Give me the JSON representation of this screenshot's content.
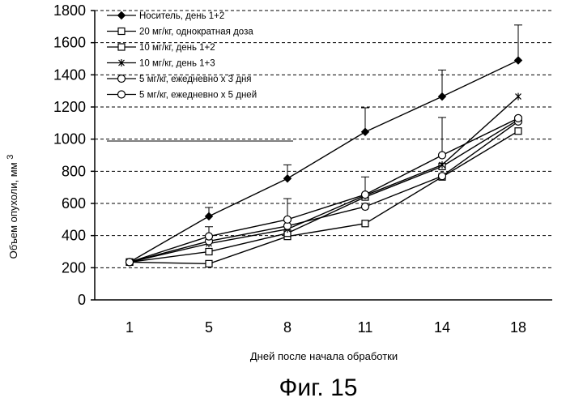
{
  "chart_data": {
    "type": "line",
    "title": "",
    "xlabel": "Дней после начала обработки",
    "ylabel": "Объем опухоли, мм",
    "ylabel_sup": "3",
    "caption": "Фиг. 15",
    "categories": [
      "1",
      "5",
      "8",
      "11",
      "14",
      "18"
    ],
    "ylim": [
      0,
      1800
    ],
    "yticks": [
      0,
      200,
      400,
      600,
      800,
      1000,
      1200,
      1400,
      1600,
      1800
    ],
    "grid": "horizontal-dashed",
    "legend_position": "top-left",
    "series": [
      {
        "name": "Носитель, день 1+2",
        "marker": "diamond-filled",
        "values": [
          235,
          520,
          755,
          1045,
          1265,
          1490
        ],
        "err": [
          0,
          55,
          85,
          150,
          165,
          220
        ]
      },
      {
        "name": "20 мг/кг, однократная доза",
        "marker": "square-open",
        "values": [
          235,
          225,
          395,
          475,
          765,
          1050
        ],
        "err": [
          0,
          0,
          0,
          0,
          0,
          0
        ]
      },
      {
        "name": "10 мг/кг, день 1+2",
        "marker": "square-open",
        "values": [
          235,
          300,
          415,
          640,
          830,
          1120
        ],
        "err": [
          0,
          0,
          0,
          0,
          0,
          0
        ]
      },
      {
        "name": "10 мг/кг, день 1+3",
        "marker": "asterisk",
        "values": [
          235,
          350,
          440,
          650,
          840,
          1265
        ],
        "err": [
          0,
          0,
          0,
          0,
          0,
          0
        ]
      },
      {
        "name": "5 мг/кг, ежедневно x 3 дня",
        "marker": "circle-open",
        "values": [
          235,
          365,
          460,
          580,
          770,
          1110
        ],
        "err": [
          0,
          0,
          0,
          0,
          0,
          0
        ]
      },
      {
        "name": "5 мг/кг, ежедневно x 5 дней",
        "marker": "circle-open",
        "values": [
          235,
          395,
          500,
          655,
          900,
          1130
        ],
        "err": [
          0,
          60,
          130,
          110,
          235,
          0
        ]
      }
    ],
    "colors": {
      "line": "#000000",
      "grid": "#000000",
      "background": "#ffffff"
    }
  }
}
